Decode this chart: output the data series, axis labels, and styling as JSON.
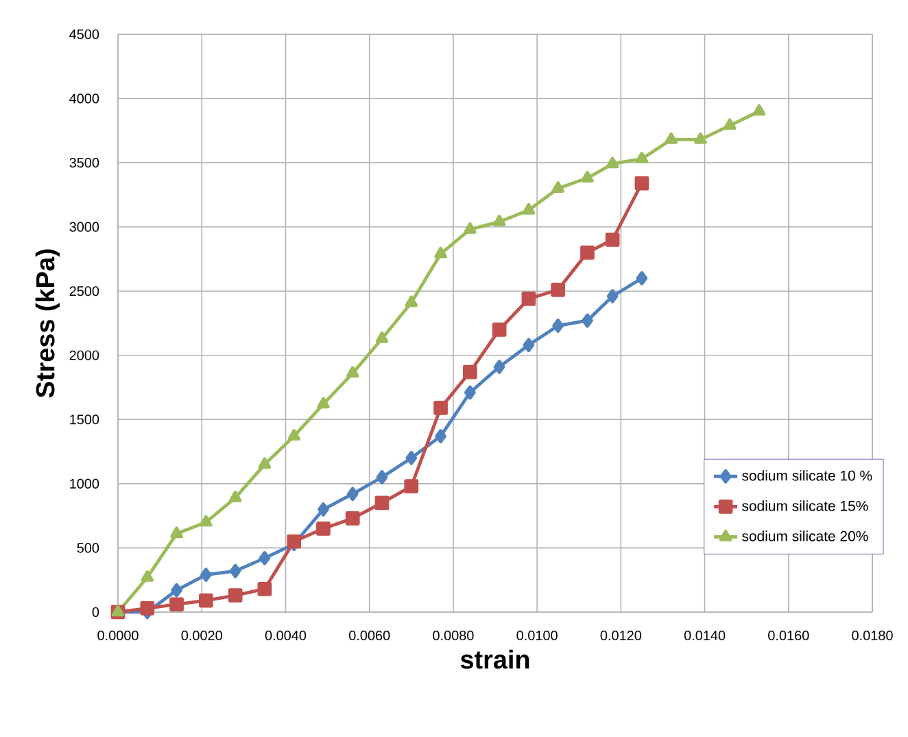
{
  "chart_data": {
    "type": "line",
    "xlabel": "strain",
    "ylabel": "Stress (kPa)",
    "xlim": [
      0,
      0.018
    ],
    "ylim": [
      0,
      4500
    ],
    "xticks": [
      {
        "value": 0,
        "label": "0.0000"
      },
      {
        "value": 0.002,
        "label": "0.0020"
      },
      {
        "value": 0.004,
        "label": "0.0040"
      },
      {
        "value": 0.006,
        "label": "0.0060"
      },
      {
        "value": 0.008,
        "label": "0.0080"
      },
      {
        "value": 0.01,
        "label": "0.0100"
      },
      {
        "value": 0.012,
        "label": "0.0120"
      },
      {
        "value": 0.014,
        "label": "0.0140"
      },
      {
        "value": 0.016,
        "label": "0.0160"
      },
      {
        "value": 0.018,
        "label": "0.0180"
      }
    ],
    "yticks": [
      0,
      500,
      1000,
      1500,
      2000,
      2500,
      3000,
      3500,
      4000,
      4500
    ],
    "grid": true,
    "legend": "bottom right",
    "line_style": "solid",
    "series": [
      {
        "name": "sodium silicate 10 %",
        "color": "#4f81bd",
        "marker": "diamond",
        "x": [
          0,
          0.0007,
          0.0014,
          0.0021,
          0.0028,
          0.0035,
          0.0042,
          0.0049,
          0.0056,
          0.0063,
          0.007,
          0.0077,
          0.0084,
          0.0091,
          0.0098,
          0.0105,
          0.0112,
          0.0118,
          0.0125
        ],
        "values": [
          0,
          0,
          170,
          290,
          320,
          420,
          530,
          800,
          920,
          1050,
          1200,
          1370,
          1710,
          1910,
          2080,
          2230,
          2270,
          2460,
          2600
        ]
      },
      {
        "name": "sodium silicate 15%",
        "color": "#c0504d",
        "marker": "square",
        "x": [
          0,
          0.0007,
          0.0014,
          0.0021,
          0.0028,
          0.0035,
          0.0042,
          0.0049,
          0.0056,
          0.0063,
          0.007,
          0.0077,
          0.0084,
          0.0091,
          0.0098,
          0.0105,
          0.0112,
          0.0118,
          0.0125
        ],
        "values": [
          0,
          30,
          60,
          90,
          130,
          180,
          550,
          650,
          730,
          850,
          980,
          1590,
          1870,
          2200,
          2440,
          2510,
          2800,
          2900,
          3340
        ]
      },
      {
        "name": "sodium silicate 20%",
        "color": "#9bbb59",
        "marker": "triangle",
        "x": [
          0,
          0.0007,
          0.0014,
          0.0021,
          0.0028,
          0.0035,
          0.0042,
          0.0049,
          0.0056,
          0.0063,
          0.007,
          0.0077,
          0.0084,
          0.0091,
          0.0098,
          0.0105,
          0.0112,
          0.0118,
          0.0125,
          0.0132,
          0.0139,
          0.0146,
          0.0153
        ],
        "values": [
          0,
          270,
          610,
          700,
          890,
          1150,
          1370,
          1620,
          1860,
          2130,
          2410,
          2790,
          2980,
          3040,
          3130,
          3300,
          3380,
          3490,
          3530,
          3680,
          3680,
          3790,
          3900
        ]
      }
    ]
  }
}
